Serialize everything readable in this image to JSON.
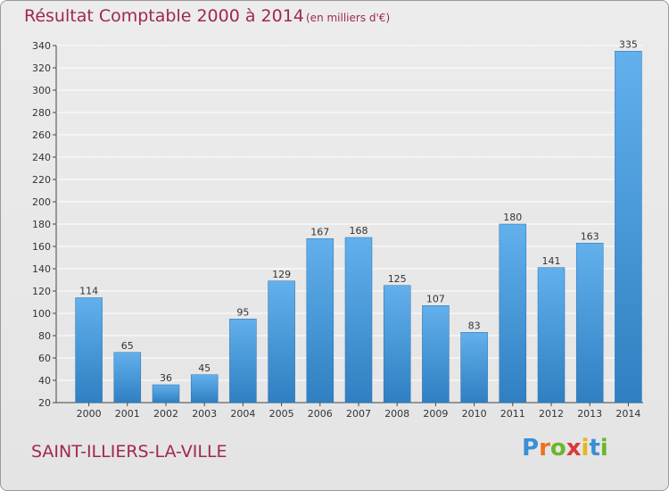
{
  "header": {
    "title": "Résultat Comptable 2000 à 2014",
    "subtitle": "(en milliers d'€)"
  },
  "footer": {
    "commune": "SAINT-ILLIERS-LA-VILLE"
  },
  "logo": {
    "letters": [
      "P",
      "r",
      "o",
      "x",
      "i",
      "t",
      "i"
    ],
    "colors": [
      "#3a8fd6",
      "#e8731e",
      "#6cb52d",
      "#d93a3a",
      "#e8b51e",
      "#3a8fd6",
      "#6cb52d"
    ]
  },
  "colors": {
    "bar_top": "#62b0ec",
    "bar_bottom": "#2f7fc2",
    "title": "#a0284f",
    "grid": "#ffffff"
  },
  "chart_data": {
    "type": "bar",
    "title": "Résultat Comptable 2000 à 2014",
    "ylabel": "en milliers d'€",
    "xlabel": "",
    "categories": [
      "2000",
      "2001",
      "2002",
      "2003",
      "2004",
      "2005",
      "2006",
      "2007",
      "2008",
      "2009",
      "2010",
      "2011",
      "2012",
      "2013",
      "2014"
    ],
    "values": [
      114,
      65,
      36,
      45,
      95,
      129,
      167,
      168,
      125,
      107,
      83,
      180,
      141,
      163,
      335
    ],
    "ylim": [
      20,
      340
    ],
    "yticks": [
      20,
      40,
      60,
      80,
      100,
      120,
      140,
      160,
      180,
      200,
      220,
      240,
      260,
      280,
      300,
      320,
      340
    ],
    "grid": true
  }
}
